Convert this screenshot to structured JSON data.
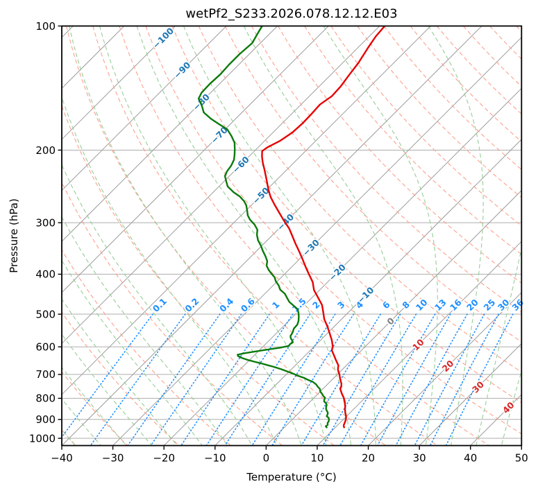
{
  "figure": {
    "title": "wetPf2_S233.2026.078.12.12.E03",
    "xlabel": "Temperature (°C)",
    "ylabel": "Pressure (hPa)",
    "background": "#ffffff"
  },
  "chart_data": {
    "type": "line",
    "projection": "skew-t-log-p",
    "skew_deg": 45,
    "grid": true,
    "x_axis": {
      "label": "Temperature (°C)",
      "range": [
        -40,
        50
      ],
      "ticks": [
        -40,
        -30,
        -20,
        -10,
        0,
        10,
        20,
        30,
        40,
        50
      ]
    },
    "y_axis": {
      "label": "Pressure (hPa)",
      "scale": "log",
      "range": [
        100,
        1041.6
      ],
      "ticks": [
        100,
        200,
        300,
        400,
        500,
        600,
        700,
        800,
        900,
        1000
      ]
    },
    "series": [
      {
        "name": "temperature",
        "color": "#e60000",
        "width": 2.4,
        "points": [
          [
            100,
            -59.0
          ],
          [
            106,
            -58.7
          ],
          [
            113,
            -58.0
          ],
          [
            123,
            -56.9
          ],
          [
            131,
            -56.4
          ],
          [
            140,
            -55.8
          ],
          [
            148,
            -55.6
          ],
          [
            155,
            -56.3
          ],
          [
            163,
            -56.1
          ],
          [
            172,
            -56.0
          ],
          [
            181,
            -56.2
          ],
          [
            190,
            -57.0
          ],
          [
            197,
            -58.2
          ],
          [
            201,
            -58.5
          ],
          [
            207,
            -57.5
          ],
          [
            214,
            -56.2
          ],
          [
            222,
            -54.6
          ],
          [
            231,
            -52.9
          ],
          [
            240,
            -51.3
          ],
          [
            250,
            -49.6
          ],
          [
            260,
            -47.8
          ],
          [
            271,
            -45.6
          ],
          [
            283,
            -43.2
          ],
          [
            296,
            -40.7
          ],
          [
            310,
            -38.0
          ],
          [
            324,
            -35.8
          ],
          [
            338,
            -33.7
          ],
          [
            352,
            -31.6
          ],
          [
            367,
            -29.5
          ],
          [
            383,
            -27.4
          ],
          [
            400,
            -25.2
          ],
          [
            418,
            -22.9
          ],
          [
            437,
            -21.1
          ],
          [
            456,
            -18.8
          ],
          [
            475,
            -16.6
          ],
          [
            494,
            -15.0
          ],
          [
            514,
            -13.4
          ],
          [
            535,
            -11.4
          ],
          [
            556,
            -9.6
          ],
          [
            578,
            -7.8
          ],
          [
            600,
            -6.3
          ],
          [
            612,
            -5.8
          ],
          [
            628,
            -4.5
          ],
          [
            646,
            -3.1
          ],
          [
            665,
            -1.6
          ],
          [
            682,
            -0.8
          ],
          [
            700,
            0.4
          ],
          [
            719,
            1.5
          ],
          [
            737,
            2.6
          ],
          [
            750,
            3.2
          ],
          [
            757,
            3.3
          ],
          [
            777,
            4.5
          ],
          [
            797,
            5.8
          ],
          [
            817,
            6.9
          ],
          [
            837,
            7.8
          ],
          [
            852,
            8.4
          ],
          [
            868,
            9.1
          ],
          [
            884,
            9.9
          ],
          [
            900,
            10.5
          ],
          [
            916,
            10.9
          ],
          [
            930,
            11.2
          ],
          [
            941,
            11.7
          ]
        ]
      },
      {
        "name": "dewpoint",
        "color": "#0b7a0b",
        "width": 2.4,
        "points": [
          [
            100,
            -83.0
          ],
          [
            105,
            -82.3
          ],
          [
            110,
            -81.6
          ],
          [
            117,
            -81.9
          ],
          [
            124,
            -81.9
          ],
          [
            131,
            -81.7
          ],
          [
            138,
            -81.9
          ],
          [
            145,
            -81.8
          ],
          [
            150,
            -81.2
          ],
          [
            156,
            -79.2
          ],
          [
            162,
            -77.5
          ],
          [
            168,
            -74.8
          ],
          [
            173,
            -72.2
          ],
          [
            178,
            -69.6
          ],
          [
            185,
            -67.4
          ],
          [
            192,
            -65.5
          ],
          [
            199,
            -64.2
          ],
          [
            205,
            -63.2
          ],
          [
            211,
            -62.3
          ],
          [
            218,
            -61.7
          ],
          [
            225,
            -61.4
          ],
          [
            231,
            -60.9
          ],
          [
            238,
            -59.6
          ],
          [
            245,
            -58.3
          ],
          [
            253,
            -56.0
          ],
          [
            259,
            -54.0
          ],
          [
            266,
            -52.2
          ],
          [
            272,
            -51.0
          ],
          [
            280,
            -49.8
          ],
          [
            288,
            -48.7
          ],
          [
            295,
            -47.4
          ],
          [
            303,
            -45.6
          ],
          [
            312,
            -44.0
          ],
          [
            321,
            -43.1
          ],
          [
            331,
            -41.8
          ],
          [
            341,
            -40.2
          ],
          [
            351,
            -38.8
          ],
          [
            362,
            -37.2
          ],
          [
            372,
            -35.9
          ],
          [
            381,
            -35.2
          ],
          [
            390,
            -34.0
          ],
          [
            399,
            -32.6
          ],
          [
            407,
            -31.3
          ],
          [
            416,
            -30.3
          ],
          [
            426,
            -28.9
          ],
          [
            436,
            -27.8
          ],
          [
            446,
            -26.1
          ],
          [
            456,
            -24.9
          ],
          [
            467,
            -23.6
          ],
          [
            477,
            -22.0
          ],
          [
            486,
            -20.6
          ],
          [
            497,
            -19.6
          ],
          [
            508,
            -18.8
          ],
          [
            519,
            -18.1
          ],
          [
            530,
            -17.6
          ],
          [
            542,
            -17.5
          ],
          [
            553,
            -17.0
          ],
          [
            565,
            -16.7
          ],
          [
            572,
            -16.2
          ],
          [
            578,
            -15.6
          ],
          [
            585,
            -15.0
          ],
          [
            591,
            -15.2
          ],
          [
            597,
            -15.1
          ],
          [
            603,
            -16.5
          ],
          [
            609,
            -18.5
          ],
          [
            617,
            -20.9
          ],
          [
            622,
            -22.4
          ],
          [
            627,
            -23.4
          ],
          [
            632,
            -23.0
          ],
          [
            638,
            -22.0
          ],
          [
            645,
            -20.5
          ],
          [
            652,
            -18.7
          ],
          [
            658,
            -17.1
          ],
          [
            665,
            -15.4
          ],
          [
            671,
            -13.9
          ],
          [
            680,
            -12.0
          ],
          [
            688,
            -10.5
          ],
          [
            697,
            -8.8
          ],
          [
            706,
            -7.3
          ],
          [
            714,
            -5.8
          ],
          [
            722,
            -4.6
          ],
          [
            730,
            -3.3
          ],
          [
            740,
            -2.2
          ],
          [
            750,
            -1.4
          ],
          [
            760,
            -0.5
          ],
          [
            770,
            0.0
          ],
          [
            780,
            0.8
          ],
          [
            790,
            1.5
          ],
          [
            798,
            2.2
          ],
          [
            806,
            2.4
          ],
          [
            814,
            2.7
          ],
          [
            822,
            3.4
          ],
          [
            830,
            3.9
          ],
          [
            840,
            4.2
          ],
          [
            850,
            4.6
          ],
          [
            858,
            5.1
          ],
          [
            866,
            5.6
          ],
          [
            874,
            5.9
          ],
          [
            884,
            6.1
          ],
          [
            892,
            6.8
          ],
          [
            900,
            7.2
          ],
          [
            910,
            7.5
          ],
          [
            918,
            7.6
          ],
          [
            928,
            8.0
          ],
          [
            935,
            7.9
          ],
          [
            941,
            8.3
          ]
        ]
      }
    ],
    "reference_lines": {
      "isotherms": {
        "color": "#9c9c9c",
        "start": -160,
        "end": 50,
        "step": 10,
        "style": "solid"
      },
      "dry_adiabats": {
        "color": "#fca08c",
        "start": -40,
        "end": 190,
        "step": 10,
        "style": "dashed"
      },
      "moist_adiabats": {
        "color": "#96cd96",
        "start": -40,
        "end": 45,
        "step": 5,
        "style": "dashed"
      },
      "mixing_ratio": {
        "color": "#1e90ff",
        "style": "dotted",
        "top_hPa": 500,
        "values_g_kg": [
          0.1,
          0.2,
          0.4,
          0.6,
          1,
          1.5,
          2,
          3,
          4,
          6,
          8,
          10,
          13,
          16,
          20,
          25,
          30,
          36
        ]
      }
    },
    "line_labels": {
      "label_colors": {
        "negative": "#1f77b4",
        "zero": "#7f7f7f",
        "positive": "#d62728",
        "mixing": "#1e90ff"
      },
      "isotherm_labels": [
        {
          "t": -100,
          "p": 107
        },
        {
          "t": -90,
          "p": 128
        },
        {
          "t": -80,
          "p": 153
        },
        {
          "t": -70,
          "p": 184
        },
        {
          "t": -60,
          "p": 217
        },
        {
          "t": -50,
          "p": 258
        },
        {
          "t": -40,
          "p": 299
        },
        {
          "t": -30,
          "p": 345
        },
        {
          "t": -20,
          "p": 396
        },
        {
          "t": -10,
          "p": 450
        },
        {
          "t": 0,
          "p": 520
        },
        {
          "t": 10,
          "p": 593
        },
        {
          "t": 20,
          "p": 668
        },
        {
          "t": 30,
          "p": 751
        },
        {
          "t": 40,
          "p": 843
        }
      ],
      "mixing_label_pressure": 475
    },
    "grid_color": "#adadad",
    "axis_color": "#000000"
  }
}
